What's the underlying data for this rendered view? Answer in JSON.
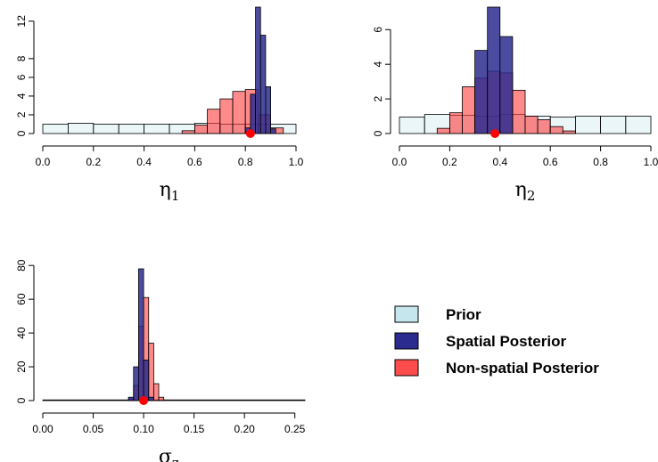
{
  "legend": {
    "entries": [
      {
        "label": "Prior",
        "color": "#c6e6ee"
      },
      {
        "label": "Spatial Posterior",
        "color": "#2b2b8f"
      },
      {
        "label": "Non-spatial Posterior",
        "color": "#ff4d4d"
      }
    ]
  },
  "colors": {
    "prior_fill": "rgba(198,230,238,0.35)",
    "spatial_fill": "rgba(43,43,143,0.85)",
    "nonspatial_fill": "rgba(255,60,60,0.6)",
    "true_value_marker": "#ff0000"
  },
  "chart_data": [
    {
      "type": "histogram",
      "xlabel": "η",
      "xlabel_sub": "1",
      "xlim": [
        0,
        1
      ],
      "ylim": [
        0,
        13.5
      ],
      "xticks": [
        0.0,
        0.2,
        0.4,
        0.6,
        0.8,
        1.0
      ],
      "xtick_labels": [
        "0.0",
        "0.2",
        "0.4",
        "0.6",
        "0.8",
        "1.0"
      ],
      "yticks": [
        0,
        2,
        4,
        6,
        8,
        12
      ],
      "ytick_labels": [
        "0",
        "2",
        "4",
        "6",
        "8",
        "12"
      ],
      "true_value": 0.82,
      "series": [
        {
          "key": "prior",
          "bins": [
            {
              "x0": 0.0,
              "x1": 0.1,
              "y": 1.0
            },
            {
              "x0": 0.1,
              "x1": 0.2,
              "y": 1.1
            },
            {
              "x0": 0.2,
              "x1": 0.3,
              "y": 1.0
            },
            {
              "x0": 0.3,
              "x1": 0.4,
              "y": 1.0
            },
            {
              "x0": 0.4,
              "x1": 0.5,
              "y": 1.0
            },
            {
              "x0": 0.5,
              "x1": 0.6,
              "y": 1.0
            },
            {
              "x0": 0.6,
              "x1": 0.7,
              "y": 1.1
            },
            {
              "x0": 0.7,
              "x1": 0.8,
              "y": 1.0
            },
            {
              "x0": 0.8,
              "x1": 0.9,
              "y": 1.0
            },
            {
              "x0": 0.9,
              "x1": 1.0,
              "y": 1.0
            }
          ]
        },
        {
          "key": "nonspatial",
          "bins": [
            {
              "x0": 0.55,
              "x1": 0.6,
              "y": 0.3
            },
            {
              "x0": 0.6,
              "x1": 0.65,
              "y": 0.9
            },
            {
              "x0": 0.65,
              "x1": 0.7,
              "y": 2.6
            },
            {
              "x0": 0.7,
              "x1": 0.75,
              "y": 3.7
            },
            {
              "x0": 0.75,
              "x1": 0.8,
              "y": 4.5
            },
            {
              "x0": 0.8,
              "x1": 0.85,
              "y": 4.7
            },
            {
              "x0": 0.85,
              "x1": 0.9,
              "y": 2.0
            },
            {
              "x0": 0.9,
              "x1": 0.95,
              "y": 0.6
            }
          ]
        },
        {
          "key": "spatial",
          "bins": [
            {
              "x0": 0.8,
              "x1": 0.82,
              "y": 0.6
            },
            {
              "x0": 0.82,
              "x1": 0.84,
              "y": 4.2
            },
            {
              "x0": 0.84,
              "x1": 0.86,
              "y": 13.5
            },
            {
              "x0": 0.86,
              "x1": 0.88,
              "y": 10.5
            },
            {
              "x0": 0.88,
              "x1": 0.9,
              "y": 5.0
            },
            {
              "x0": 0.9,
              "x1": 0.92,
              "y": 0.5
            }
          ]
        }
      ]
    },
    {
      "type": "histogram",
      "xlabel": "η",
      "xlabel_sub": "2",
      "xlim": [
        0,
        1
      ],
      "ylim": [
        0,
        7.3
      ],
      "xticks": [
        0.0,
        0.2,
        0.4,
        0.6,
        0.8,
        1.0
      ],
      "xtick_labels": [
        "0.0",
        "0.2",
        "0.4",
        "0.6",
        "0.8",
        "1.0"
      ],
      "yticks": [
        0,
        2,
        4,
        6
      ],
      "ytick_labels": [
        "0",
        "2",
        "4",
        "6"
      ],
      "true_value": 0.38,
      "series": [
        {
          "key": "prior",
          "bins": [
            {
              "x0": 0.0,
              "x1": 0.1,
              "y": 0.95
            },
            {
              "x0": 0.1,
              "x1": 0.2,
              "y": 1.1
            },
            {
              "x0": 0.2,
              "x1": 0.3,
              "y": 1.05
            },
            {
              "x0": 0.3,
              "x1": 0.4,
              "y": 1.0
            },
            {
              "x0": 0.4,
              "x1": 0.5,
              "y": 1.1
            },
            {
              "x0": 0.5,
              "x1": 0.6,
              "y": 1.0
            },
            {
              "x0": 0.6,
              "x1": 0.7,
              "y": 0.95
            },
            {
              "x0": 0.7,
              "x1": 0.8,
              "y": 1.0
            },
            {
              "x0": 0.8,
              "x1": 0.9,
              "y": 1.0
            },
            {
              "x0": 0.9,
              "x1": 1.0,
              "y": 1.0
            }
          ]
        },
        {
          "key": "nonspatial",
          "bins": [
            {
              "x0": 0.15,
              "x1": 0.2,
              "y": 0.3
            },
            {
              "x0": 0.2,
              "x1": 0.25,
              "y": 1.2
            },
            {
              "x0": 0.25,
              "x1": 0.3,
              "y": 2.7
            },
            {
              "x0": 0.3,
              "x1": 0.35,
              "y": 3.2
            },
            {
              "x0": 0.35,
              "x1": 0.4,
              "y": 3.6
            },
            {
              "x0": 0.4,
              "x1": 0.45,
              "y": 3.5
            },
            {
              "x0": 0.45,
              "x1": 0.5,
              "y": 2.5
            },
            {
              "x0": 0.5,
              "x1": 0.55,
              "y": 1.0
            },
            {
              "x0": 0.55,
              "x1": 0.6,
              "y": 0.8
            },
            {
              "x0": 0.6,
              "x1": 0.65,
              "y": 0.4
            },
            {
              "x0": 0.65,
              "x1": 0.7,
              "y": 0.15
            }
          ]
        },
        {
          "key": "spatial",
          "bins": [
            {
              "x0": 0.3,
              "x1": 0.35,
              "y": 4.8
            },
            {
              "x0": 0.35,
              "x1": 0.4,
              "y": 7.3
            },
            {
              "x0": 0.4,
              "x1": 0.45,
              "y": 5.6
            }
          ]
        }
      ]
    },
    {
      "type": "histogram",
      "xlabel": "σ",
      "xlabel_sub": "z",
      "xlim": [
        0,
        0.26
      ],
      "ylim": [
        0,
        78
      ],
      "xticks": [
        0.0,
        0.05,
        0.1,
        0.15,
        0.2,
        0.25
      ],
      "xtick_labels": [
        "0.00",
        "0.05",
        "0.10",
        "0.15",
        "0.20",
        "0.25"
      ],
      "yticks": [
        0,
        20,
        40,
        60,
        80
      ],
      "ytick_labels": [
        "0",
        "20",
        "40",
        "60",
        "80"
      ],
      "true_value": 0.1,
      "series": [
        {
          "key": "prior",
          "bins": [
            {
              "x0": 0.0,
              "x1": 0.26,
              "y": 0.4
            }
          ]
        },
        {
          "key": "nonspatial",
          "bins": [
            {
              "x0": 0.085,
              "x1": 0.09,
              "y": 1.0
            },
            {
              "x0": 0.09,
              "x1": 0.095,
              "y": 9.0
            },
            {
              "x0": 0.095,
              "x1": 0.1,
              "y": 44.0
            },
            {
              "x0": 0.1,
              "x1": 0.105,
              "y": 61.0
            },
            {
              "x0": 0.105,
              "x1": 0.11,
              "y": 34.0
            },
            {
              "x0": 0.11,
              "x1": 0.115,
              "y": 10.0
            },
            {
              "x0": 0.115,
              "x1": 0.12,
              "y": 2.0
            }
          ]
        },
        {
          "key": "spatial",
          "bins": [
            {
              "x0": 0.085,
              "x1": 0.09,
              "y": 2.0
            },
            {
              "x0": 0.09,
              "x1": 0.095,
              "y": 20.0
            },
            {
              "x0": 0.095,
              "x1": 0.1,
              "y": 78.0
            },
            {
              "x0": 0.1,
              "x1": 0.105,
              "y": 24.0
            },
            {
              "x0": 0.105,
              "x1": 0.11,
              "y": 2.0
            }
          ]
        }
      ]
    }
  ]
}
